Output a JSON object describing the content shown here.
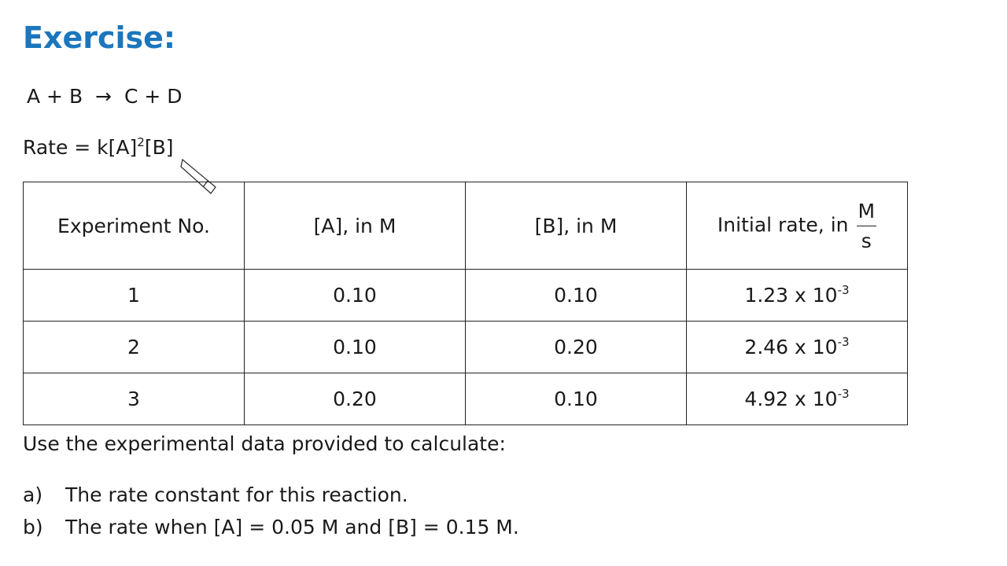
{
  "header": {
    "title": "Exercise:"
  },
  "reaction": {
    "left": "A + B",
    "arrow": "→",
    "right": "C + D"
  },
  "rate_law": {
    "base": "Rate = k[A]",
    "exponent": "2",
    "tail": "[B]"
  },
  "table": {
    "headers": [
      "Experiment No.",
      "[A], in M",
      "[B], in M",
      {
        "text": "Initial rate, in",
        "numerator": "M",
        "denominator": "s"
      }
    ],
    "rows": [
      [
        "1",
        "0.10",
        "0.10",
        {
          "base": "1.23 x 10",
          "exponent": "-3"
        }
      ],
      [
        "2",
        "0.10",
        "0.20",
        {
          "base": "2.46 x 10",
          "exponent": "-3"
        }
      ],
      [
        "3",
        "0.20",
        "0.10",
        {
          "base": "4.92 x 10",
          "exponent": "-3"
        }
      ]
    ]
  },
  "instructions": {
    "intro": "Use the experimental data provided to calculate:",
    "items": [
      {
        "marker": "a)",
        "text": "The rate constant for this reaction."
      },
      {
        "marker": "b)",
        "text": "The rate when [A] = 0.05 M and [B] = 0.15 M."
      }
    ]
  }
}
